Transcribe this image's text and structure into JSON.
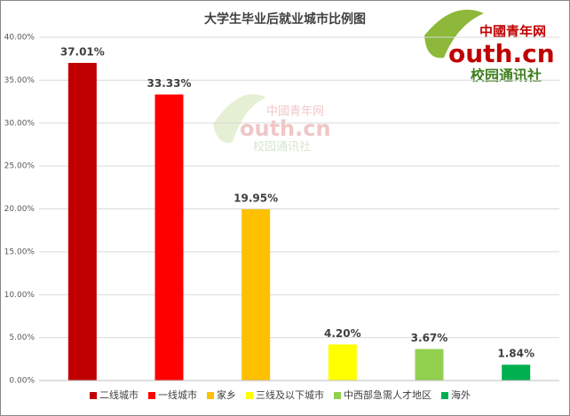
{
  "chart_data": {
    "type": "bar",
    "title": "大学生毕业后就业城市比例图",
    "series": [
      {
        "name": "二线城市",
        "color": "#c00000",
        "values": [
          37.01
        ],
        "value_labels": [
          "37.01%"
        ]
      },
      {
        "name": "一线城市",
        "color": "#ff0000",
        "values": [
          33.33
        ],
        "value_labels": [
          "33.33%"
        ]
      },
      {
        "name": "家乡",
        "color": "#ffc000",
        "values": [
          19.95
        ],
        "value_labels": [
          "19.95%"
        ]
      },
      {
        "name": "三线及以下城市",
        "color": "#ffff00",
        "values": [
          4.2
        ],
        "value_labels": [
          "4.20%"
        ]
      },
      {
        "name": "中西部急需人才地区",
        "color": "#92d050",
        "values": [
          3.67
        ],
        "value_labels": [
          "3.67%"
        ]
      },
      {
        "name": "海外",
        "color": "#00b050",
        "values": [
          1.84
        ],
        "value_labels": [
          "1.84%"
        ]
      }
    ],
    "ylim": [
      0,
      40
    ],
    "yticks": [
      {
        "value": 0,
        "label": "0.00%"
      },
      {
        "value": 5,
        "label": "5.00%"
      },
      {
        "value": 10,
        "label": "10.00%"
      },
      {
        "value": 15,
        "label": "15.00%"
      },
      {
        "value": 20,
        "label": "20.00%"
      },
      {
        "value": 25,
        "label": "25.00%"
      },
      {
        "value": 30,
        "label": "30.00%"
      },
      {
        "value": 35,
        "label": "35.00%"
      },
      {
        "value": 40,
        "label": "40.00%"
      }
    ],
    "grid": true,
    "legend": "bottom",
    "logo": {
      "top": "中國青年网",
      "main": "outh.cn",
      "sub": "校园通讯社"
    }
  }
}
